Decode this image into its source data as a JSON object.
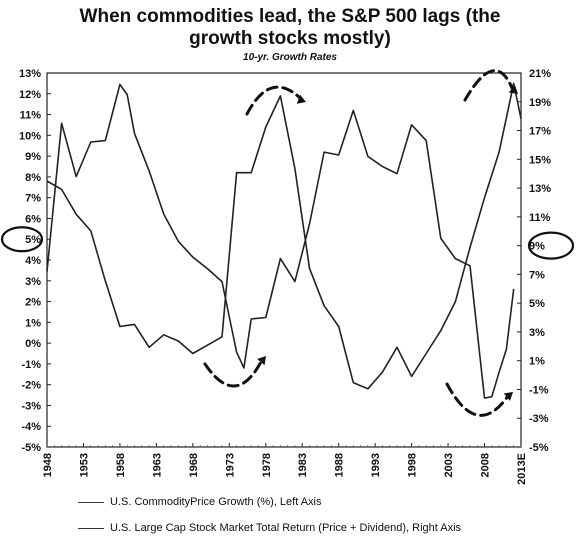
{
  "chart_data": {
    "type": "line",
    "title": "When commodities lead, the S&P 500 lags (the growth stocks mostly)",
    "title_line1": "When commodities lead, the S&P 500 lags (the",
    "title_line2": "growth stocks mostly)",
    "subtitle": "10-yr. Growth Rates",
    "x_ticks": [
      "1948",
      "1953",
      "1958",
      "1963",
      "1968",
      "1973",
      "1978",
      "1983",
      "1988",
      "1993",
      "1998",
      "2003",
      "2008",
      "2013E"
    ],
    "left_axis": {
      "ylim": [
        -5,
        13
      ],
      "ticks": [
        "13%",
        "12%",
        "11%",
        "10%",
        "9%",
        "8%",
        "7%",
        "6%",
        "5%",
        "4%",
        "3%",
        "2%",
        "1%",
        "0%",
        "-1%",
        "-2%",
        "-3%",
        "-4%",
        "-5%"
      ]
    },
    "right_axis": {
      "ylim": [
        -5,
        21
      ],
      "ticks": [
        "21%",
        "19%",
        "17%",
        "15%",
        "13%",
        "11%",
        "9%",
        "7%",
        "5%",
        "3%",
        "1%",
        "-1%",
        "-3%",
        "-5%"
      ]
    },
    "highlight_left": "5%",
    "highlight_right": "9%",
    "series": [
      {
        "name": "U.S. CommodityPrice Growth (%), Left Axis",
        "axis": "left",
        "x": [
          1948,
          1950,
          1952,
          1954,
          1956,
          1958,
          1960,
          1962,
          1964,
          1966,
          1968,
          1970,
          1972,
          1974,
          1976,
          1978,
          1980,
          1982,
          1984,
          1986,
          1988,
          1990,
          1992,
          1994,
          1996,
          1998,
          2000,
          2002,
          2004,
          2006,
          2008,
          2010,
          2012,
          2013
        ],
        "y": [
          7.8,
          7.4,
          6.2,
          5.4,
          3.0,
          0.8,
          0.9,
          -0.2,
          0.4,
          0.1,
          -0.5,
          -0.1,
          0.3,
          8.2,
          8.2,
          10.4,
          11.9,
          8.4,
          3.6,
          1.8,
          0.8,
          -1.9,
          -2.2,
          -1.4,
          -0.2,
          -1.6,
          -0.5,
          0.6,
          2.0,
          4.6,
          7.0,
          9.2,
          12.5,
          10.8
        ]
      },
      {
        "name": "U.S. Large Cap Stock Market Total Return (Price + Dividend), Right Axis",
        "axis": "right",
        "x": [
          1948,
          1950,
          1952,
          1954,
          1956,
          1958,
          1959,
          1960,
          1962,
          1964,
          1966,
          1968,
          1970,
          1972,
          1974,
          1975,
          1976,
          1978,
          1980,
          1982,
          1984,
          1986,
          1988,
          1990,
          1992,
          1994,
          1996,
          1998,
          2000,
          2002,
          2004,
          2006,
          2008,
          2009,
          2010,
          2011,
          2012
        ],
        "y": [
          7.2,
          17.5,
          13.8,
          16.2,
          16.3,
          20.2,
          19.5,
          16.8,
          14.2,
          11.2,
          9.3,
          8.2,
          7.4,
          6.5,
          1.6,
          0.5,
          3.9,
          4.0,
          8.1,
          6.5,
          10.5,
          15.5,
          15.3,
          18.4,
          15.2,
          14.5,
          14.0,
          17.4,
          16.3,
          9.5,
          8.1,
          7.6,
          -1.6,
          -1.5,
          0.2,
          1.8,
          6.0
        ]
      }
    ]
  }
}
